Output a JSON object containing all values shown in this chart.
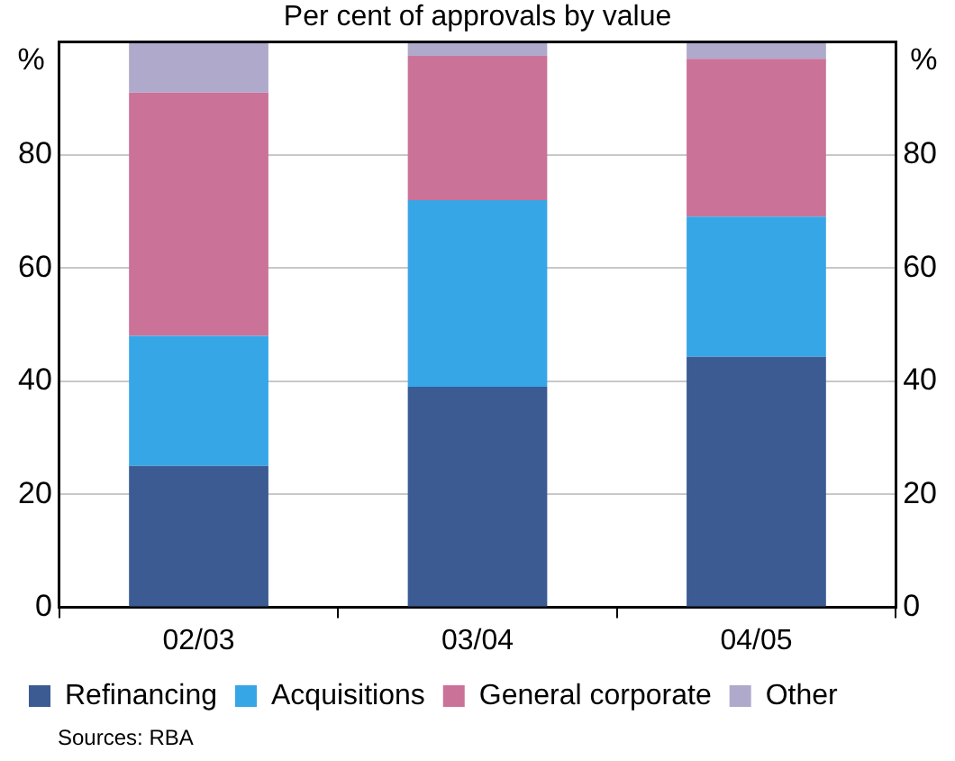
{
  "chart_data": {
    "type": "bar",
    "title": "Per cent of approvals by value",
    "ylabel": "%",
    "y2label": "%",
    "categories": [
      "02/03",
      "03/04",
      "04/05"
    ],
    "stacked": true,
    "series": [
      {
        "name": "Refinancing",
        "color": "#3b5b92",
        "values": [
          25,
          39,
          44.3
        ]
      },
      {
        "name": "Acquisitions",
        "color": "#36a6e6",
        "values": [
          23,
          33,
          24.8
        ]
      },
      {
        "name": "General corporate",
        "color": "#cb7299",
        "values": [
          43,
          25.5,
          27.9
        ]
      },
      {
        "name": "Other",
        "color": "#afa9cb",
        "values": [
          9,
          2.5,
          3
        ]
      }
    ],
    "ylim": [
      0,
      100
    ],
    "yticks": [
      0,
      20,
      40,
      60,
      80
    ],
    "y2lim": [
      0,
      100
    ],
    "y2ticks": [
      0,
      20,
      40,
      60,
      80
    ],
    "grid": "y",
    "legend": "bottom",
    "annotations": [
      "Sources: RBA"
    ]
  }
}
